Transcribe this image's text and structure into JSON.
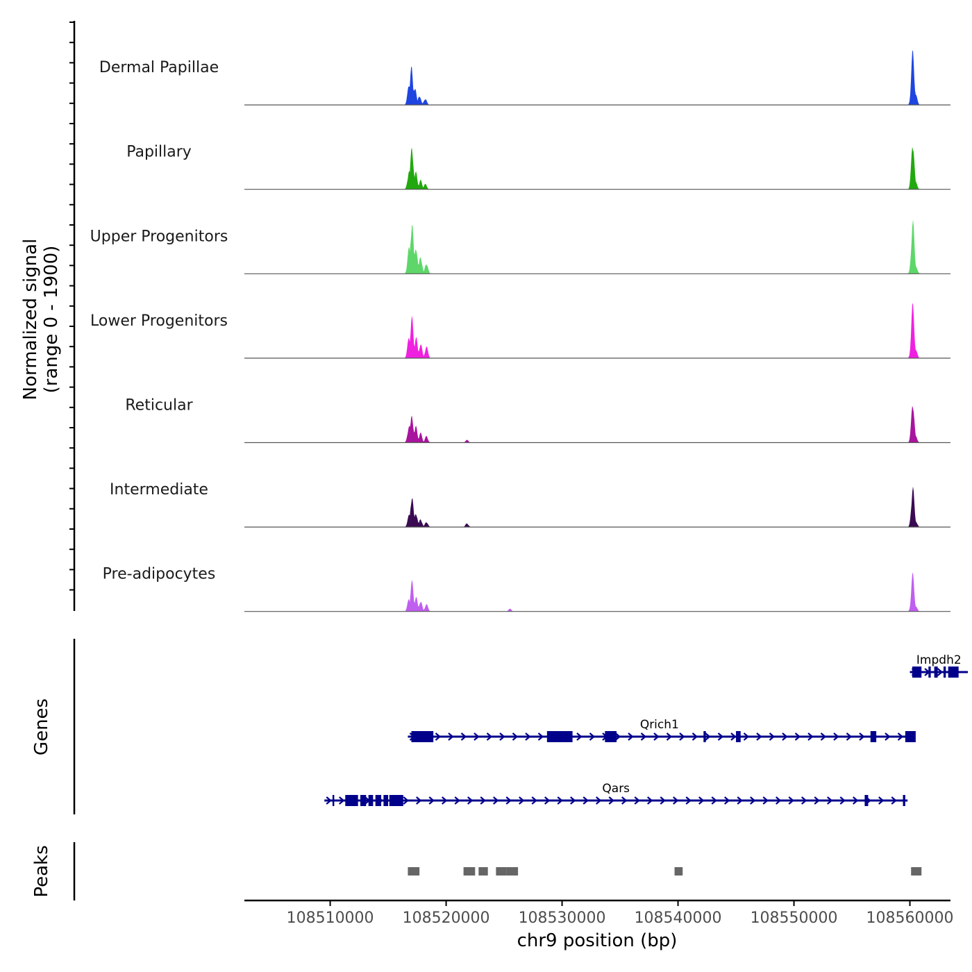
{
  "chart_data": {
    "type": "coverage-track",
    "chromosome": "chr9",
    "x_range": [
      108502600,
      108563500
    ],
    "y_axis_label_line1": "Normalized signal",
    "y_axis_label_line2": "(range 0 - 1900)",
    "y_range": [
      0,
      1900
    ],
    "xlabel": "chr9 position (bp)",
    "x_ticks": [
      {
        "value": 108510000,
        "label": "108510000"
      },
      {
        "value": 108520000,
        "label": "108520000"
      },
      {
        "value": 108530000,
        "label": "108530000"
      },
      {
        "value": 108540000,
        "label": "108540000"
      },
      {
        "value": 108550000,
        "label": "108550000"
      },
      {
        "value": 108560000,
        "label": "108560000"
      }
    ],
    "tracks": [
      {
        "name": "Dermal Papillae",
        "color": "#1f45e0",
        "peaks": [
          {
            "pos": 108516800,
            "h": 0.4
          },
          {
            "pos": 108517000,
            "h": 0.7
          },
          {
            "pos": 108517300,
            "h": 0.35
          },
          {
            "pos": 108517700,
            "h": 0.18
          },
          {
            "pos": 108518200,
            "h": 0.12
          },
          {
            "pos": 108560250,
            "h": 1.0
          },
          {
            "pos": 108560500,
            "h": 0.2
          }
        ]
      },
      {
        "name": "Papillary",
        "color": "#22a80f",
        "peaks": [
          {
            "pos": 108516800,
            "h": 0.35
          },
          {
            "pos": 108517050,
            "h": 0.82
          },
          {
            "pos": 108517400,
            "h": 0.32
          },
          {
            "pos": 108517800,
            "h": 0.17
          },
          {
            "pos": 108518200,
            "h": 0.1
          },
          {
            "pos": 108560250,
            "h": 0.92
          },
          {
            "pos": 108560500,
            "h": 0.14
          }
        ]
      },
      {
        "name": "Upper Progenitors",
        "color": "#5ed66a",
        "peaks": [
          {
            "pos": 108516800,
            "h": 0.48
          },
          {
            "pos": 108517050,
            "h": 1.0
          },
          {
            "pos": 108517400,
            "h": 0.52
          },
          {
            "pos": 108517800,
            "h": 0.33
          },
          {
            "pos": 108518300,
            "h": 0.2
          },
          {
            "pos": 108560250,
            "h": 1.0
          },
          {
            "pos": 108560500,
            "h": 0.17
          }
        ]
      },
      {
        "name": "Lower Progenitors",
        "color": "#f020e0",
        "peaks": [
          {
            "pos": 108516800,
            "h": 0.42
          },
          {
            "pos": 108517050,
            "h": 0.75
          },
          {
            "pos": 108517400,
            "h": 0.4
          },
          {
            "pos": 108517800,
            "h": 0.28
          },
          {
            "pos": 108518300,
            "h": 0.22
          },
          {
            "pos": 108560250,
            "h": 1.0
          },
          {
            "pos": 108560500,
            "h": 0.16
          }
        ]
      },
      {
        "name": "Reticular",
        "color": "#a8149e",
        "peaks": [
          {
            "pos": 108516800,
            "h": 0.32
          },
          {
            "pos": 108517050,
            "h": 0.52
          },
          {
            "pos": 108517400,
            "h": 0.3
          },
          {
            "pos": 108517800,
            "h": 0.18
          },
          {
            "pos": 108518300,
            "h": 0.12
          },
          {
            "pos": 108521800,
            "h": 0.05
          },
          {
            "pos": 108560250,
            "h": 0.78
          },
          {
            "pos": 108560500,
            "h": 0.12
          }
        ]
      },
      {
        "name": "Intermediate",
        "color": "#3a0a52",
        "peaks": [
          {
            "pos": 108516800,
            "h": 0.22
          },
          {
            "pos": 108517050,
            "h": 0.6
          },
          {
            "pos": 108517400,
            "h": 0.27
          },
          {
            "pos": 108517800,
            "h": 0.15
          },
          {
            "pos": 108518300,
            "h": 0.1
          },
          {
            "pos": 108521800,
            "h": 0.07
          },
          {
            "pos": 108560250,
            "h": 0.76
          },
          {
            "pos": 108560500,
            "h": 0.12
          }
        ]
      },
      {
        "name": "Pre-adipocytes",
        "color": "#c05ef0",
        "peaks": [
          {
            "pos": 108516800,
            "h": 0.25
          },
          {
            "pos": 108517050,
            "h": 0.56
          },
          {
            "pos": 108517400,
            "h": 0.28
          },
          {
            "pos": 108517800,
            "h": 0.2
          },
          {
            "pos": 108518300,
            "h": 0.14
          },
          {
            "pos": 108525500,
            "h": 0.05
          },
          {
            "pos": 108560250,
            "h": 0.7
          },
          {
            "pos": 108560500,
            "h": 0.1
          }
        ]
      }
    ],
    "genes_label": "Genes",
    "gene_color": "#00008b",
    "genes": [
      {
        "name": "Impdh2",
        "row": 0,
        "start": 108560000,
        "end": 108565000,
        "exons": [
          [
            108560200,
            108561000
          ],
          [
            108561600,
            108561800
          ],
          [
            108562100,
            108562400
          ],
          [
            108562900,
            108563100
          ],
          [
            108563300,
            108564200
          ]
        ]
      },
      {
        "name": "Qrich1",
        "row": 1,
        "start": 108516700,
        "end": 108560100,
        "exons": [
          [
            108517000,
            108518900
          ],
          [
            108528700,
            108530900
          ],
          [
            108533700,
            108534700
          ],
          [
            108542200,
            108542400
          ],
          [
            108545000,
            108545400
          ],
          [
            108556600,
            108557100
          ],
          [
            108559600,
            108560500
          ]
        ]
      },
      {
        "name": "Qars",
        "row": 2,
        "start": 108509500,
        "end": 108559800,
        "exons": [
          [
            108510200,
            108510350
          ],
          [
            108511300,
            108512400
          ],
          [
            108512600,
            108513100
          ],
          [
            108513300,
            108513700
          ],
          [
            108513900,
            108514400
          ],
          [
            108514600,
            108515000
          ],
          [
            108515100,
            108516300
          ],
          [
            108556100,
            108556400
          ],
          [
            108559400,
            108559600
          ]
        ]
      }
    ],
    "peaks_label": "Peaks",
    "peaks_color": "#666666",
    "peak_regions": [
      [
        108516700,
        108517700
      ],
      [
        108521500,
        108522500
      ],
      [
        108522800,
        108523600
      ],
      [
        108524300,
        108525200
      ],
      [
        108525200,
        108526200
      ],
      [
        108539700,
        108540400
      ],
      [
        108560100,
        108561000
      ]
    ]
  }
}
